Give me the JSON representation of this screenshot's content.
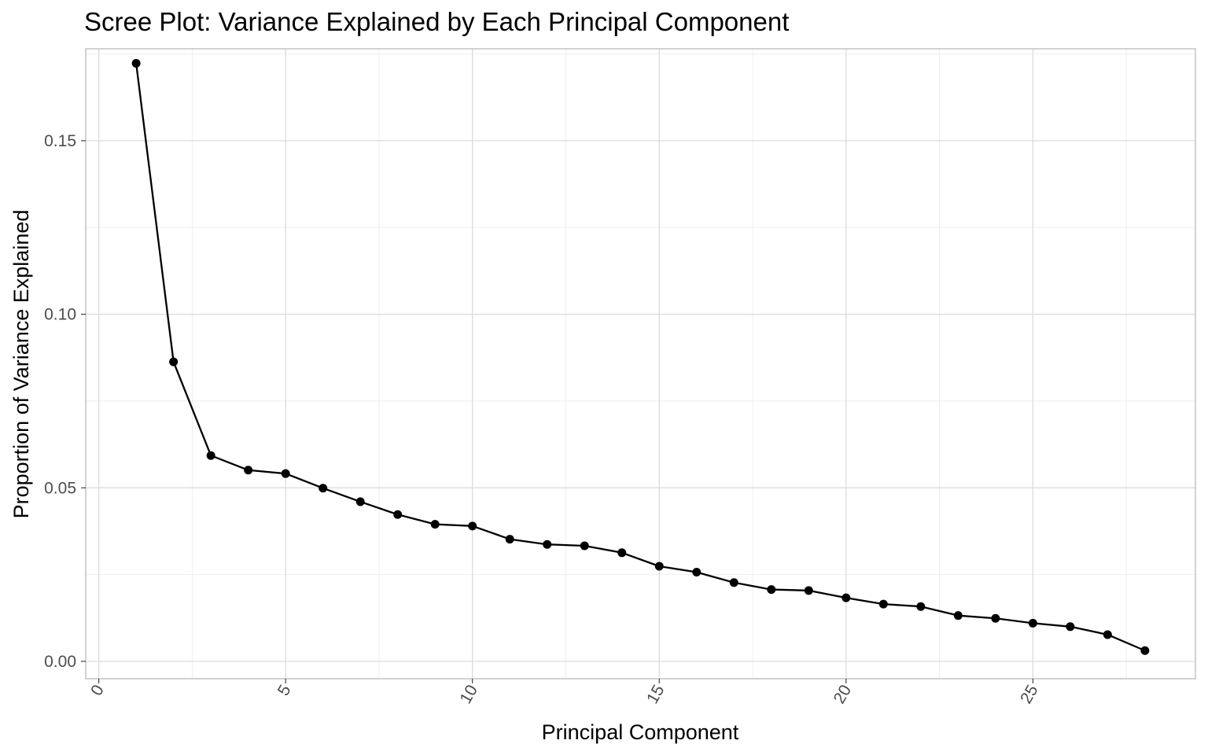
{
  "chart_data": {
    "type": "line",
    "title": "Scree Plot: Variance Explained by Each Principal Component",
    "xlabel": "Principal Component",
    "ylabel": "Proportion of Variance Explained",
    "xlim": [
      -0.35,
      29.35
    ],
    "ylim": [
      -0.005,
      0.1765
    ],
    "x_ticks": [
      0,
      5,
      10,
      15,
      20,
      25
    ],
    "x_tick_labels": [
      "0",
      "5",
      "10",
      "15",
      "20",
      "25"
    ],
    "y_ticks": [
      0.0,
      0.05,
      0.1,
      0.15
    ],
    "y_tick_labels": [
      "0.00",
      "0.05",
      "0.10",
      "0.15"
    ],
    "x_tick_rotation": -60,
    "grid": true,
    "legend": "none",
    "colors": {
      "line": "#000000",
      "point": "#000000",
      "grid_major": "#d9d9d9",
      "grid_minor": "#ebebeb",
      "panel_border": "#b3b3b3",
      "tick_label": "#4d4d4d"
    },
    "series": [
      {
        "x": [
          1,
          2,
          3,
          4,
          5,
          6,
          7,
          8,
          9,
          10,
          11,
          12,
          13,
          14,
          15,
          16,
          17,
          18,
          19,
          20,
          21,
          22,
          23,
          24,
          25,
          26,
          27,
          28
        ],
        "values": [
          0.1723,
          0.0863,
          0.0593,
          0.0551,
          0.0541,
          0.0499,
          0.046,
          0.0423,
          0.0395,
          0.039,
          0.0352,
          0.0337,
          0.0333,
          0.0313,
          0.0274,
          0.0257,
          0.0227,
          0.0207,
          0.0204,
          0.0183,
          0.0165,
          0.0158,
          0.0132,
          0.0124,
          0.011,
          0.01,
          0.0077,
          0.0031
        ]
      }
    ]
  }
}
